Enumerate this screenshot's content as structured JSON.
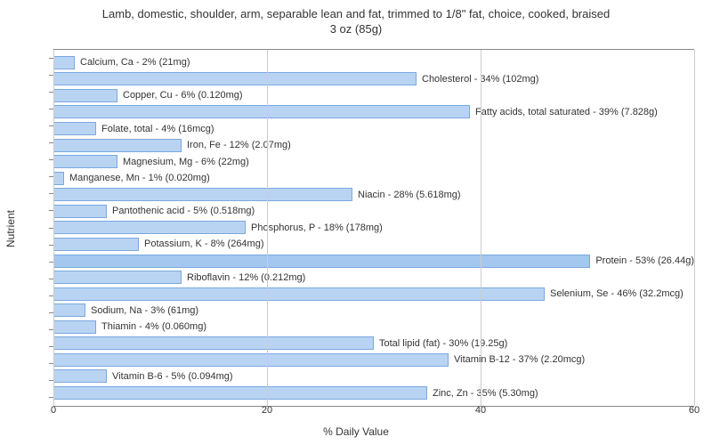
{
  "chart": {
    "type": "bar-horizontal",
    "title_line1": "Lamb, domestic, shoulder, arm, separable lean and fat, trimmed to 1/8\" fat, choice, cooked, braised",
    "title_line2": "3 oz (85g)",
    "title_fontsize": 13,
    "label_fontsize": 12,
    "bar_label_fontsize": 11,
    "y_label": "Nutrient",
    "x_label": "% Daily Value",
    "x_min": 0,
    "x_max": 60,
    "x_tick_step": 20,
    "x_ticks": [
      "0",
      "20",
      "40",
      "60"
    ],
    "background_color": "#ffffff",
    "grid_color": "#cccccc",
    "axis_color": "#888888",
    "bar_fill_color": "#b9d4f2",
    "bar_highlight_color": "#a4c7ef",
    "bar_border_color": "#7aa8e0",
    "text_color": "#333333",
    "nutrients": [
      {
        "label": "Calcium, Ca - 2% (21mg)",
        "value": 2,
        "highlight": false
      },
      {
        "label": "Cholesterol - 34% (102mg)",
        "value": 34,
        "highlight": false
      },
      {
        "label": "Copper, Cu - 6% (0.120mg)",
        "value": 6,
        "highlight": false
      },
      {
        "label": "Fatty acids, total saturated - 39% (7.828g)",
        "value": 39,
        "highlight": false
      },
      {
        "label": "Folate, total - 4% (16mcg)",
        "value": 4,
        "highlight": false
      },
      {
        "label": "Iron, Fe - 12% (2.07mg)",
        "value": 12,
        "highlight": false
      },
      {
        "label": "Magnesium, Mg - 6% (22mg)",
        "value": 6,
        "highlight": false
      },
      {
        "label": "Manganese, Mn - 1% (0.020mg)",
        "value": 1,
        "highlight": false
      },
      {
        "label": "Niacin - 28% (5.618mg)",
        "value": 28,
        "highlight": false
      },
      {
        "label": "Pantothenic acid - 5% (0.518mg)",
        "value": 5,
        "highlight": false
      },
      {
        "label": "Phosphorus, P - 18% (178mg)",
        "value": 18,
        "highlight": false
      },
      {
        "label": "Potassium, K - 8% (264mg)",
        "value": 8,
        "highlight": false
      },
      {
        "label": "Protein - 53% (26.44g)",
        "value": 53,
        "highlight": true
      },
      {
        "label": "Riboflavin - 12% (0.212mg)",
        "value": 12,
        "highlight": false
      },
      {
        "label": "Selenium, Se - 46% (32.2mcg)",
        "value": 46,
        "highlight": false
      },
      {
        "label": "Sodium, Na - 3% (61mg)",
        "value": 3,
        "highlight": false
      },
      {
        "label": "Thiamin - 4% (0.060mg)",
        "value": 4,
        "highlight": false
      },
      {
        "label": "Total lipid (fat) - 30% (19.25g)",
        "value": 30,
        "highlight": false
      },
      {
        "label": "Vitamin B-12 - 37% (2.20mcg)",
        "value": 37,
        "highlight": false
      },
      {
        "label": "Vitamin B-6 - 5% (0.094mg)",
        "value": 5,
        "highlight": false
      },
      {
        "label": "Zinc, Zn - 35% (5.30mg)",
        "value": 35,
        "highlight": false
      }
    ]
  }
}
